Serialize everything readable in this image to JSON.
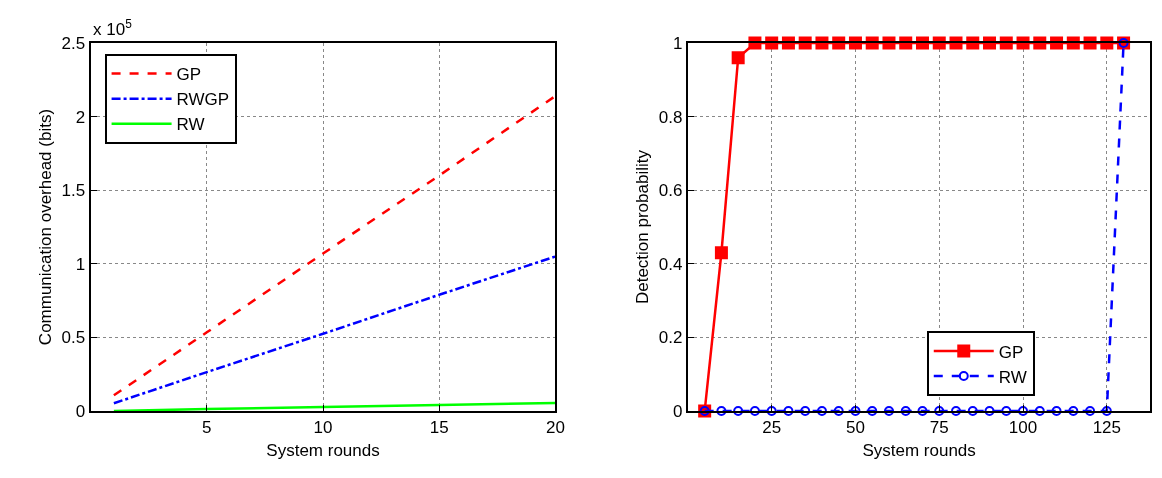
{
  "chart_data": [
    {
      "type": "line",
      "xlabel": "System rounds",
      "ylabel": "Communication overhead (bits)",
      "annotations": [
        "x 10$^{5}$"
      ],
      "xlim": [
        0,
        20
      ],
      "xticks": [
        5,
        10,
        15,
        20
      ],
      "ylim": [
        0,
        2.5
      ],
      "yticks": [
        0,
        0.5,
        1,
        1.5,
        2,
        2.5
      ],
      "grid": true,
      "legend": "top left",
      "marker": "none",
      "series": [
        {
          "name": "GP",
          "color": "#ff0000",
          "line_style": "dashed",
          "x": [
            1,
            5,
            10,
            15,
            20
          ],
          "values": [
            0.107,
            0.535,
            1.07,
            1.6,
            2.14
          ]
        },
        {
          "name": "RWGP",
          "color": "#0000ff",
          "line_style": "dashdot",
          "x": [
            1,
            5,
            10,
            15,
            20
          ],
          "values": [
            0.053,
            0.265,
            0.525,
            0.79,
            1.05
          ]
        },
        {
          "name": "RW",
          "color": "#00ff00",
          "line_style": "solid",
          "x": [
            1,
            5,
            10,
            15,
            20
          ],
          "values": [
            0.0,
            0.014,
            0.028,
            0.042,
            0.055
          ]
        }
      ]
    },
    {
      "type": "line",
      "xlabel": "System rounds",
      "ylabel": "Detection probability",
      "xlim": [
        0,
        138
      ],
      "xticks": [
        25,
        50,
        75,
        100,
        125
      ],
      "ylim": [
        0,
        1
      ],
      "yticks": [
        0,
        0.2,
        0.4,
        0.6,
        0.8,
        1
      ],
      "grid": true,
      "legend": "bottom right",
      "x": [
        5,
        10,
        15,
        20,
        25,
        30,
        35,
        40,
        45,
        50,
        55,
        60,
        65,
        70,
        75,
        80,
        85,
        90,
        95,
        100,
        105,
        110,
        115,
        120,
        125,
        130
      ],
      "series": [
        {
          "name": "GP",
          "color": "#ff0000",
          "line_style": "solid",
          "marker": "square",
          "values": [
            0,
            0.43,
            0.96,
            1,
            1,
            1,
            1,
            1,
            1,
            1,
            1,
            1,
            1,
            1,
            1,
            1,
            1,
            1,
            1,
            1,
            1,
            1,
            1,
            1,
            1,
            1
          ]
        },
        {
          "name": "RW",
          "color": "#0000ff",
          "line_style": "dashed",
          "marker": "circle",
          "values": [
            0,
            0,
            0,
            0,
            0,
            0,
            0,
            0,
            0,
            0,
            0,
            0,
            0,
            0,
            0,
            0,
            0,
            0,
            0,
            0,
            0,
            0,
            0,
            0,
            0,
            1
          ]
        }
      ]
    }
  ]
}
